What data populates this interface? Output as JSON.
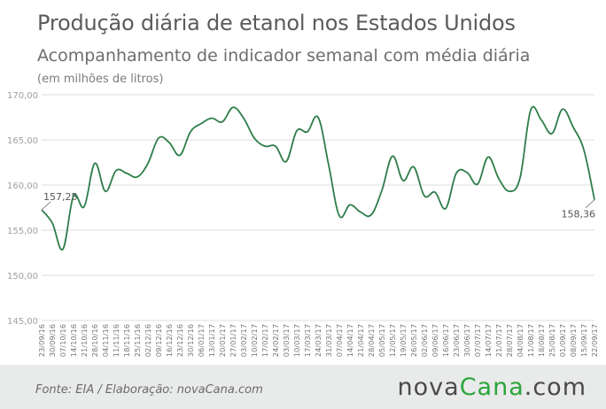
{
  "header": {
    "title": "Produção diária de etanol nos Estados Unidos",
    "subtitle": "Acompanhamento de indicador semanal com média diária",
    "unit": "(em milhões de litros)"
  },
  "footer": {
    "source": "Fonte:  EIA / Elaboração:  novaCana.com",
    "logo_part1": "nova",
    "logo_part2": "Cana",
    "logo_part3": ".com"
  },
  "colors": {
    "line": "#2e7d4a",
    "grid": "#dcdcdc",
    "axis_text": "#a0a0a0",
    "footer_bg": "#e9eaea",
    "logo_green": "#2aa63b"
  },
  "chart_data": {
    "type": "line",
    "ylim": [
      145,
      170
    ],
    "yticks": [
      "145,00",
      "150,00",
      "155,00",
      "160,00",
      "165,00",
      "170,00"
    ],
    "x": [
      "23/09/16",
      "30/09/16",
      "07/10/16",
      "14/10/16",
      "21/10/16",
      "28/10/16",
      "04/11/16",
      "11/11/16",
      "18/11/16",
      "25/11/16",
      "02/12/16",
      "09/12/16",
      "16/12/16",
      "23/12/16",
      "30/12/16",
      "06/01/17",
      "13/01/17",
      "20/01/17",
      "27/01/17",
      "03/02/17",
      "10/02/17",
      "17/02/17",
      "24/02/17",
      "03/03/17",
      "10/03/17",
      "17/03/17",
      "24/03/17",
      "31/03/17",
      "07/04/17",
      "14/04/17",
      "21/04/17",
      "28/04/17",
      "05/05/17",
      "12/05/17",
      "19/05/17",
      "26/05/17",
      "02/06/17",
      "09/06/17",
      "16/06/17",
      "23/06/17",
      "30/06/17",
      "07/07/17",
      "14/07/17",
      "21/07/17",
      "28/07/17",
      "04/08/17",
      "11/08/17",
      "18/08/17",
      "25/08/17",
      "01/09/17",
      "08/09/17",
      "15/09/17",
      "22/09/17"
    ],
    "values": [
      157.25,
      155.8,
      152.9,
      158.8,
      157.6,
      162.4,
      159.3,
      161.6,
      161.3,
      160.9,
      162.4,
      165.2,
      164.7,
      163.3,
      165.9,
      166.8,
      167.4,
      167.0,
      168.6,
      167.4,
      165.2,
      164.3,
      164.3,
      162.6,
      166.0,
      165.9,
      167.5,
      162.2,
      156.6,
      157.8,
      157.0,
      156.7,
      159.4,
      163.2,
      160.5,
      162.0,
      158.8,
      159.2,
      157.4,
      161.3,
      161.4,
      160.1,
      163.1,
      160.7,
      159.3,
      160.8,
      168.3,
      167.2,
      165.7,
      168.4,
      166.4,
      163.9,
      158.36
    ],
    "annotations": [
      {
        "index": 0,
        "label": "157,25"
      },
      {
        "index": 52,
        "label": "158,36"
      }
    ],
    "grid": true
  }
}
